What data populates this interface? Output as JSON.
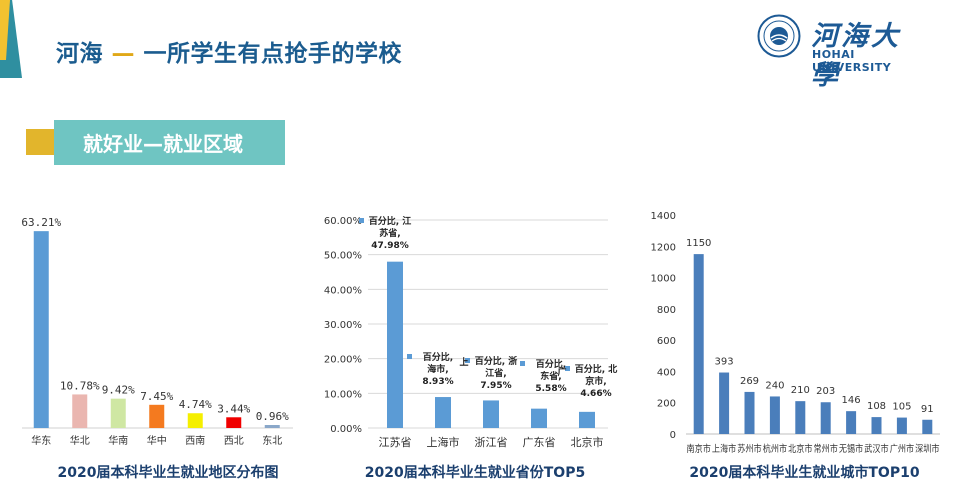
{
  "header": {
    "title_main": "河海",
    "title_dash": "—",
    "title_rest": "一所学生有点抢手的学校",
    "logo_cn": "河海大學",
    "logo_en": "HOHAI UNIVERSITY"
  },
  "section": {
    "title": "就好业—就业区域"
  },
  "colors": {
    "title_blue": "#1b5c8f",
    "banner": "#6fc5c2",
    "mark_yellow": "#e2b52c",
    "bar_blue": "#5b9bd5"
  },
  "chart_data": [
    {
      "type": "bar",
      "title": "2020届本科毕业生就业地区分布图",
      "categories": [
        "华东",
        "华北",
        "华南",
        "华中",
        "西南",
        "西北",
        "东北"
      ],
      "values": [
        63.21,
        10.78,
        9.42,
        7.45,
        4.74,
        3.44,
        0.96
      ],
      "value_labels": [
        "63.21%",
        "10.78%",
        "9.42%",
        "7.45%",
        "4.74%",
        "3.44%",
        "0.96%"
      ],
      "colors": [
        "#5b9bd5",
        "#eab6b0",
        "#cfe7a3",
        "#f47a1f",
        "#f5ef00",
        "#f00000",
        "#8aa7c9"
      ],
      "ylim": [
        0,
        70
      ],
      "grid": false
    },
    {
      "type": "bar",
      "title": "2020届本科毕业生就业省份TOP5",
      "categories": [
        "江苏省",
        "上海市",
        "浙江省",
        "广东省",
        "北京市"
      ],
      "values": [
        47.98,
        8.93,
        7.95,
        5.58,
        4.66
      ],
      "value_labels": [
        [
          "百分比, 江",
          "苏省,",
          "47.98%"
        ],
        [
          "百分比,",
          "海市,",
          "8.93%"
        ],
        [
          "百分比, 浙",
          "江省,",
          "7.95%"
        ],
        [
          "百分比,",
          "东省,",
          "5.58%"
        ],
        [
          "百分比, 北",
          "京市,",
          "4.66%"
        ]
      ],
      "stray_labels": [
        "上",
        "广"
      ],
      "yticks": [
        "0.00%",
        "10.00%",
        "20.00%",
        "30.00%",
        "40.00%",
        "50.00%",
        "60.00%"
      ],
      "ylim": [
        0,
        60
      ],
      "grid": true
    },
    {
      "type": "bar",
      "title": "2020届本科毕业生就业城市TOP10",
      "categories": [
        "南京市",
        "上海市",
        "苏州市",
        "杭州市",
        "北京市",
        "常州市",
        "无锡市",
        "武汉市",
        "广州市",
        "深圳市"
      ],
      "values": [
        1150,
        393,
        269,
        240,
        210,
        203,
        146,
        108,
        105,
        91
      ],
      "yticks": [
        "0",
        "200",
        "400",
        "600",
        "800",
        "1000",
        "1200",
        "1400"
      ],
      "ylim": [
        0,
        1400
      ],
      "grid": false
    }
  ]
}
